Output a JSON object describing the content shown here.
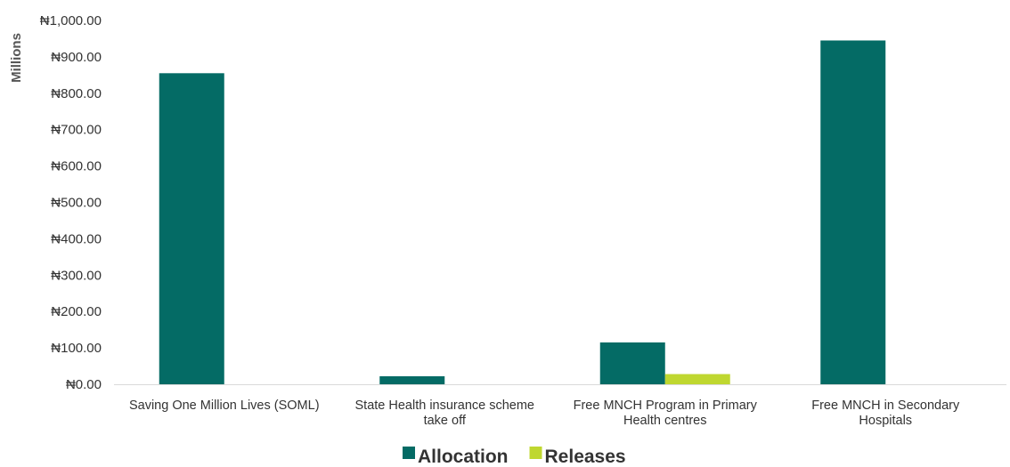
{
  "chart_data": {
    "type": "bar",
    "ylabel": "Millions",
    "ylim": [
      0,
      1000
    ],
    "y_ticks": [
      "₦0.00",
      "₦100.00",
      "₦200.00",
      "₦300.00",
      "₦400.00",
      "₦500.00",
      "₦600.00",
      "₦700.00",
      "₦800.00",
      "₦900.00",
      "₦1,000.00"
    ],
    "categories": [
      [
        "Saving One Million Lives (SOML)"
      ],
      [
        "State Health insurance scheme",
        "take off"
      ],
      [
        "Free MNCH Program in Primary",
        "Health centres"
      ],
      [
        "Free MNCH in Secondary",
        "Hospitals"
      ]
    ],
    "series": [
      {
        "name": "Allocation",
        "color": "#046B65",
        "values": [
          855,
          22,
          115,
          945
        ]
      },
      {
        "name": "Releases",
        "color": "#BFD730",
        "values": [
          0,
          0,
          28,
          0
        ]
      }
    ],
    "legend_position": "bottom-center",
    "grid": false
  }
}
